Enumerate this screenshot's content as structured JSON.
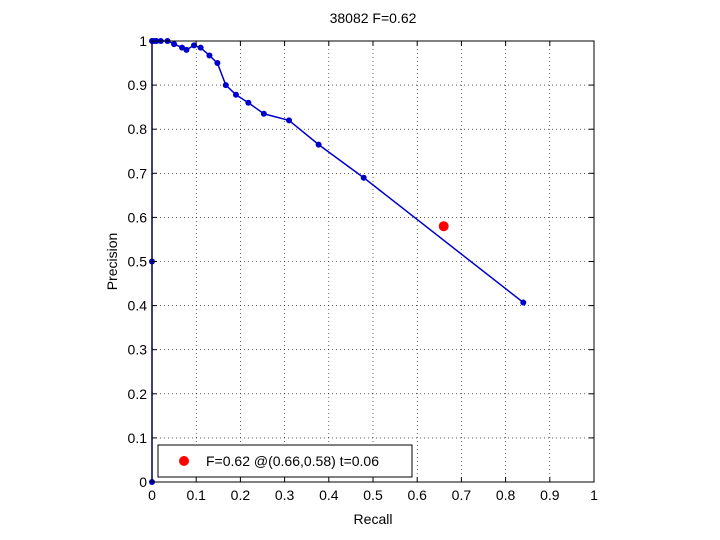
{
  "chart_data": {
    "type": "line",
    "title": "38082 F=0.62",
    "xlabel": "Recall",
    "ylabel": "Precision",
    "xlim": [
      0,
      1
    ],
    "ylim": [
      0,
      1
    ],
    "xticks": [
      0,
      0.1,
      0.2,
      0.3,
      0.4,
      0.5,
      0.6,
      0.7,
      0.8,
      0.9,
      1
    ],
    "yticks": [
      0,
      0.1,
      0.2,
      0.3,
      0.4,
      0.5,
      0.6,
      0.7,
      0.8,
      0.9,
      1
    ],
    "xtick_labels": [
      "0",
      "0.1",
      "0.2",
      "0.3",
      "0.4",
      "0.5",
      "0.6",
      "0.7",
      "0.8",
      "0.9",
      "1"
    ],
    "ytick_labels": [
      "0",
      "0.1",
      "0.2",
      "0.3",
      "0.4",
      "0.5",
      "0.6",
      "0.7",
      "0.8",
      "0.9",
      "1"
    ],
    "grid": true,
    "legend_position": "bottom-left",
    "series": [
      {
        "color": "#0000cc",
        "marker": "dot",
        "points": [
          [
            0.0,
            0.0
          ],
          [
            0.0,
            0.5
          ],
          [
            0.0,
            1.0
          ],
          [
            0.005,
            1.0
          ],
          [
            0.01,
            1.0
          ],
          [
            0.02,
            1.0
          ],
          [
            0.035,
            1.0
          ],
          [
            0.05,
            0.993
          ],
          [
            0.068,
            0.985
          ],
          [
            0.078,
            0.98
          ],
          [
            0.095,
            0.99
          ],
          [
            0.11,
            0.985
          ],
          [
            0.13,
            0.967
          ],
          [
            0.148,
            0.95
          ],
          [
            0.167,
            0.9
          ],
          [
            0.19,
            0.878
          ],
          [
            0.218,
            0.86
          ],
          [
            0.253,
            0.835
          ],
          [
            0.31,
            0.82
          ],
          [
            0.377,
            0.765
          ],
          [
            0.479,
            0.69
          ],
          [
            0.84,
            0.407
          ]
        ]
      }
    ],
    "highlight": {
      "x": 0.66,
      "y": 0.58,
      "color": "#ff0000",
      "label": "F=0.62 @(0.66,0.58) t=0.06"
    }
  }
}
